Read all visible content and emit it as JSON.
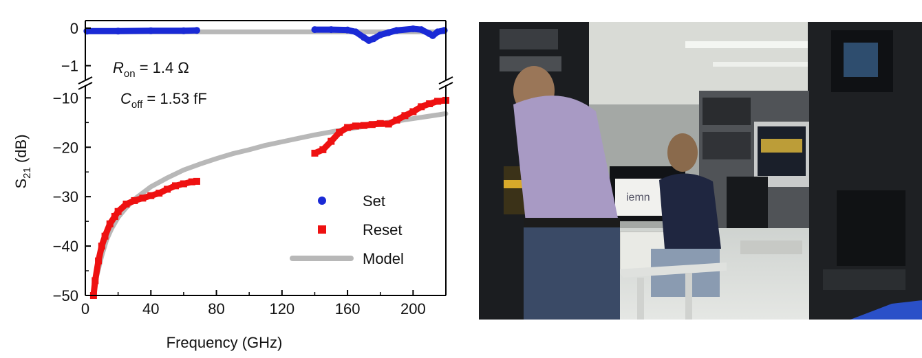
{
  "chart_data": {
    "type": "scatter",
    "xlabel": "Frequency (GHz)",
    "ylabel": "S21 (dB)",
    "xlim": [
      0,
      220
    ],
    "x_ticks": [
      0,
      40,
      80,
      120,
      160,
      200
    ],
    "ylim": [
      -50,
      0
    ],
    "broken_axis": {
      "upper": [
        -1.3,
        0.2
      ],
      "lower": [
        -50,
        -8
      ]
    },
    "y_ticks_upper": [
      0,
      -1
    ],
    "y_ticks_lower": [
      -10,
      -20,
      -30,
      -40,
      -50
    ],
    "x_tick_labels": [
      "0",
      "40",
      "80",
      "120",
      "160",
      "200"
    ],
    "y_tick_labels_upper": [
      "0",
      "−1"
    ],
    "y_tick_labels_lower": [
      "−10",
      "−20",
      "−30",
      "−40",
      "−50"
    ],
    "legend_position": "bottom-right",
    "annotations": [
      {
        "main": "R",
        "sub": "on",
        "rest": " = 1.4 Ω"
      },
      {
        "main": "C",
        "sub": "off",
        "rest": " = 1.53 fF"
      }
    ],
    "series": [
      {
        "name": "Set",
        "marker": "circle",
        "color": "#1a2ad6",
        "x": [
          1,
          20,
          40,
          60,
          68,
          140,
          150,
          160,
          165,
          170,
          173,
          176,
          180,
          185,
          190,
          200,
          205,
          210,
          212,
          215,
          219
        ],
        "y": [
          -0.08,
          -0.08,
          -0.07,
          -0.07,
          -0.06,
          -0.04,
          -0.04,
          -0.05,
          -0.1,
          -0.25,
          -0.33,
          -0.28,
          -0.18,
          -0.12,
          -0.06,
          -0.02,
          -0.04,
          -0.15,
          -0.2,
          -0.1,
          -0.06
        ]
      },
      {
        "name": "Reset",
        "marker": "square",
        "color": "#ee1111",
        "x": [
          5,
          6,
          8,
          10,
          12,
          15,
          18,
          20,
          25,
          30,
          35,
          40,
          45,
          50,
          55,
          60,
          65,
          68,
          140,
          145,
          150,
          155,
          160,
          165,
          170,
          175,
          180,
          185,
          190,
          195,
          200,
          205,
          210,
          215,
          220
        ],
        "y": [
          -50,
          -47,
          -43,
          -40,
          -38,
          -35.5,
          -34,
          -33,
          -31.5,
          -30.8,
          -30.3,
          -29.8,
          -29.3,
          -28.5,
          -27.8,
          -27.4,
          -27,
          -26.9,
          -21.2,
          -20.5,
          -18.8,
          -17,
          -16,
          -15.7,
          -15.6,
          -15.4,
          -15.2,
          -15.3,
          -14.5,
          -13.6,
          -12.8,
          -11.8,
          -11.2,
          -10.7,
          -10.5
        ]
      },
      {
        "name": "Model",
        "marker": "line",
        "color": "#b8b8b8",
        "x": [
          5,
          7,
          10,
          13,
          16,
          20,
          25,
          30,
          40,
          50,
          60,
          70,
          80,
          90,
          100,
          110,
          120,
          130,
          140,
          150,
          160,
          170,
          180,
          190,
          200,
          210,
          220
        ],
        "y": [
          -50,
          -46,
          -42,
          -38.7,
          -36.5,
          -34.2,
          -32.2,
          -30.5,
          -28,
          -26.2,
          -24.6,
          -23.4,
          -22.3,
          -21.3,
          -20.5,
          -19.6,
          -18.9,
          -18.2,
          -17.5,
          -16.9,
          -16.3,
          -15.8,
          -15.2,
          -14.7,
          -14.2,
          -13.7,
          -13.2
        ],
        "upper_y": -0.1
      }
    ]
  },
  "photo": {
    "description_icon": "lab-photo-icon",
    "screen_text": "iemn"
  }
}
